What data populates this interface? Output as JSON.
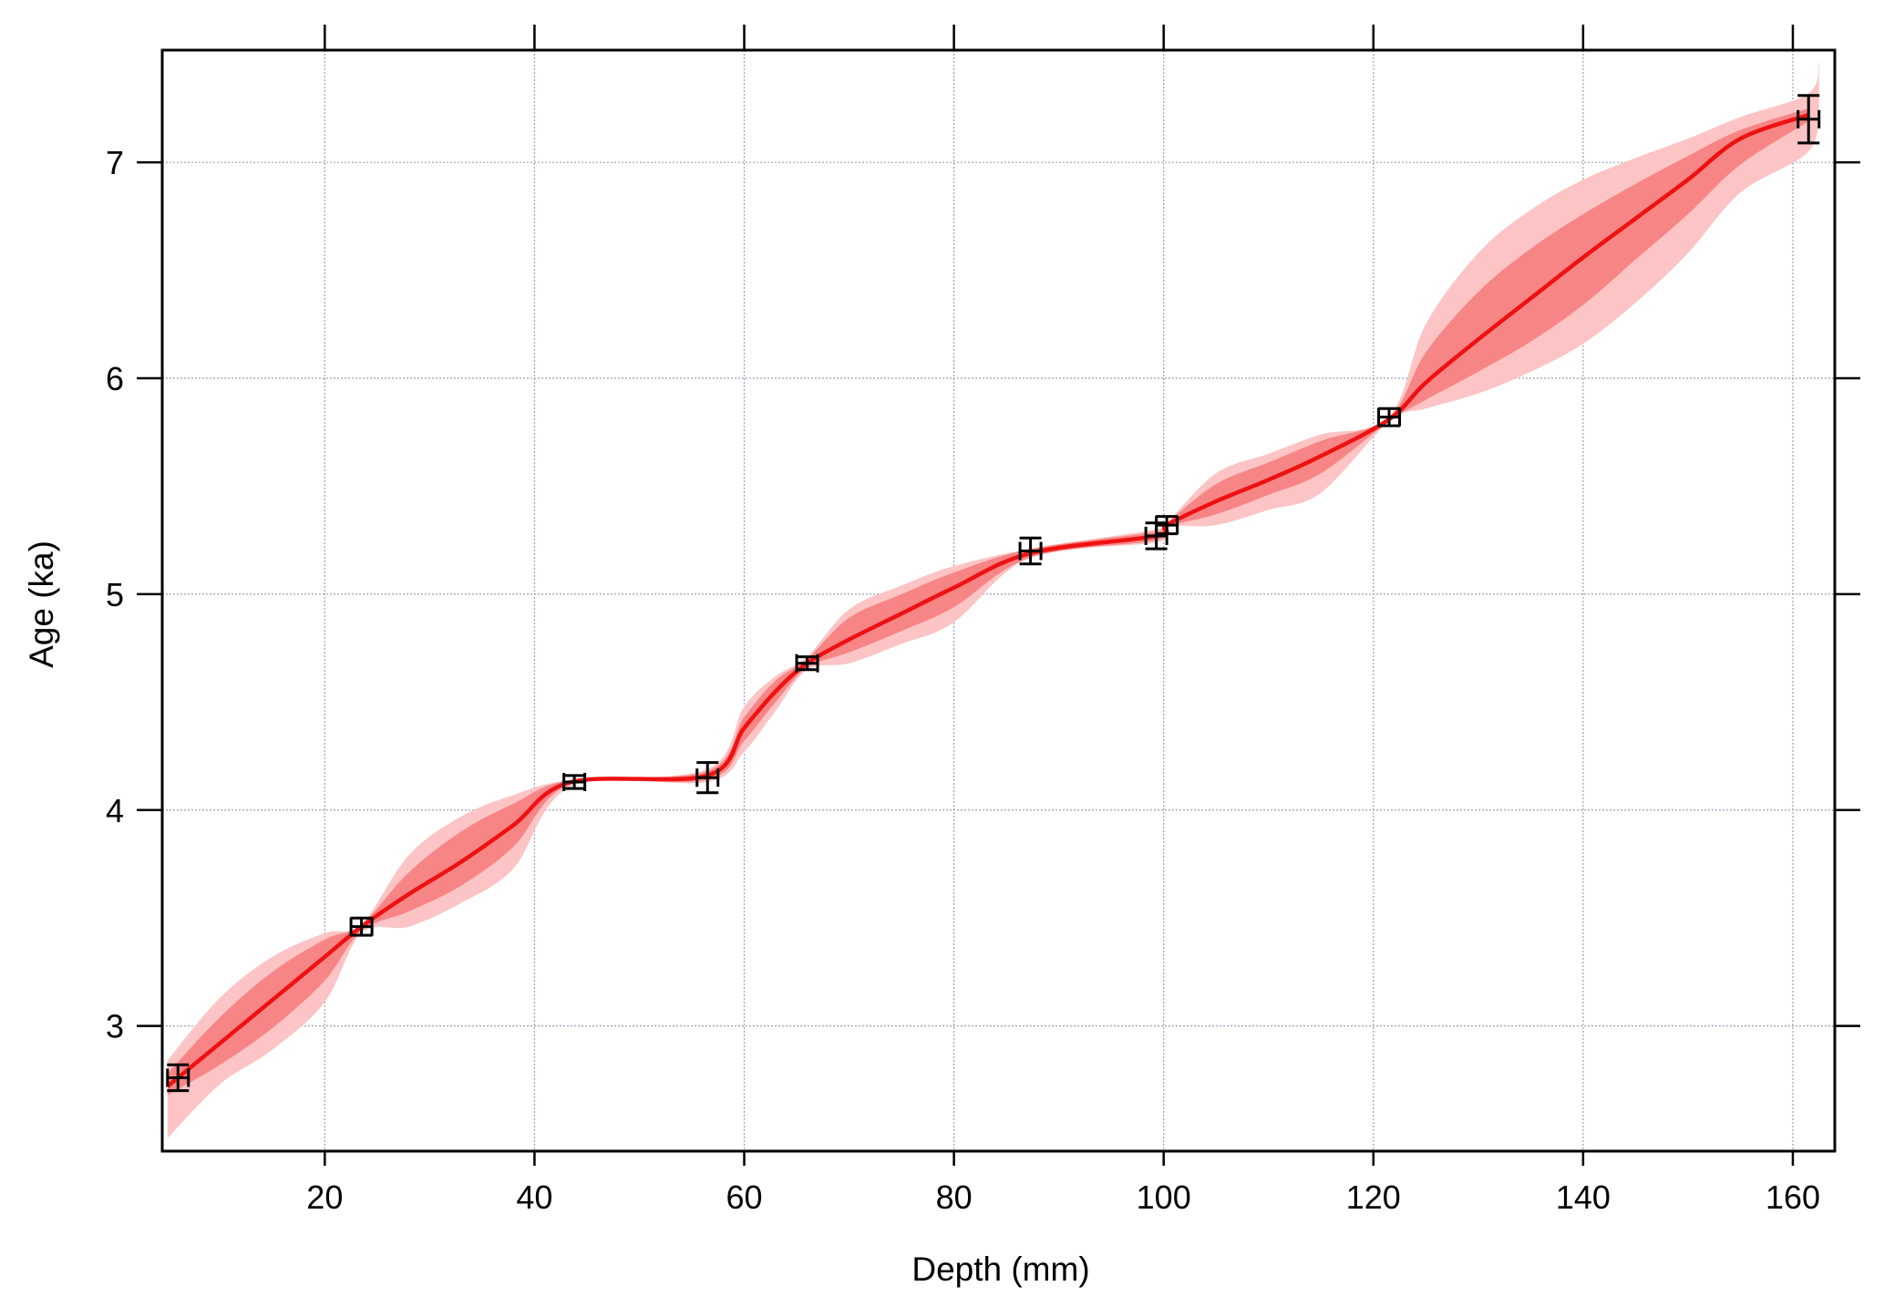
{
  "chart_data": {
    "type": "line",
    "xlabel": "Depth (mm)",
    "ylabel": "Age (ka)",
    "xlim": [
      4.5,
      164
    ],
    "ylim": [
      2.42,
      7.52
    ],
    "x_ticks": [
      20,
      40,
      60,
      80,
      100,
      120,
      140,
      160
    ],
    "y_ticks": [
      3,
      4,
      5,
      6,
      7
    ],
    "x_tick_labels": [
      "20",
      "40",
      "60",
      "80",
      "100",
      "120",
      "140",
      "160"
    ],
    "y_tick_labels": [
      "3",
      "4",
      "5",
      "6",
      "7"
    ],
    "grid": true,
    "colors": {
      "median": "#ee1111",
      "inner_band": "#f78585",
      "outer_band": "#fcc4c4",
      "points": "#000000"
    },
    "series": [
      {
        "role": "median",
        "x": [
          5.0,
          10,
          15,
          20,
          23.5,
          28,
          33,
          38,
          43.5,
          56.5,
          60,
          63,
          66.0,
          70,
          75,
          80,
          87.3,
          99.3,
          100.3,
          105,
          110,
          115,
          121.5,
          125,
          130,
          135,
          140,
          145,
          150,
          155,
          161.5
        ],
        "y": [
          2.72,
          2.92,
          3.12,
          3.32,
          3.46,
          3.61,
          3.76,
          3.93,
          4.13,
          4.16,
          4.38,
          4.55,
          4.68,
          4.79,
          4.91,
          5.03,
          5.19,
          5.27,
          5.32,
          5.43,
          5.53,
          5.64,
          5.81,
          5.98,
          6.18,
          6.37,
          6.56,
          6.74,
          6.92,
          7.11,
          7.22
        ]
      },
      {
        "role": "inner_band_upper",
        "x": [
          5.0,
          10,
          15,
          20,
          23.5,
          28,
          33,
          38,
          43.5,
          56.5,
          60,
          63,
          66.0,
          70,
          75,
          80,
          87.3,
          99.3,
          100.3,
          105,
          110,
          115,
          121.5,
          125,
          130,
          135,
          140,
          145,
          150,
          155,
          161.5
        ],
        "y": [
          2.78,
          3.04,
          3.25,
          3.4,
          3.47,
          3.71,
          3.9,
          4.03,
          4.14,
          4.18,
          4.43,
          4.6,
          4.7,
          4.89,
          5.0,
          5.1,
          5.21,
          5.29,
          5.33,
          5.51,
          5.61,
          5.71,
          5.82,
          6.12,
          6.4,
          6.6,
          6.76,
          6.9,
          7.03,
          7.15,
          7.25
        ]
      },
      {
        "role": "inner_band_lower",
        "x": [
          5.0,
          10,
          15,
          20,
          23.5,
          28,
          33,
          38,
          43.5,
          56.5,
          60,
          63,
          66.0,
          70,
          75,
          80,
          87.3,
          99.3,
          100.3,
          105,
          110,
          115,
          121.5,
          125,
          130,
          135,
          140,
          145,
          150,
          155,
          161.5
        ],
        "y": [
          2.68,
          2.82,
          2.99,
          3.21,
          3.44,
          3.53,
          3.65,
          3.83,
          4.12,
          4.14,
          4.32,
          4.5,
          4.66,
          4.73,
          4.83,
          4.94,
          5.17,
          5.25,
          5.31,
          5.37,
          5.46,
          5.56,
          5.8,
          5.9,
          6.03,
          6.17,
          6.34,
          6.55,
          6.76,
          6.99,
          7.19
        ]
      },
      {
        "role": "outer_band_upper",
        "x": [
          5.0,
          10,
          15,
          20,
          23.5,
          28,
          33,
          38,
          43.5,
          56.5,
          60,
          63,
          66.0,
          70,
          75,
          80,
          87.3,
          99.3,
          100.3,
          105,
          110,
          115,
          121.5,
          125,
          130,
          135,
          140,
          145,
          150,
          155,
          161.5,
          162.5
        ],
        "y": [
          2.84,
          3.13,
          3.32,
          3.43,
          3.47,
          3.79,
          3.97,
          4.07,
          4.14,
          4.19,
          4.48,
          4.62,
          4.71,
          4.93,
          5.04,
          5.13,
          5.21,
          5.3,
          5.33,
          5.56,
          5.65,
          5.74,
          5.82,
          6.25,
          6.58,
          6.78,
          6.92,
          7.02,
          7.11,
          7.21,
          7.32,
          7.47
        ]
      },
      {
        "role": "outer_band_lower",
        "x": [
          5.0,
          10,
          15,
          20,
          23.5,
          28,
          33,
          38,
          43.5,
          56.5,
          60,
          63,
          66.0,
          70,
          75,
          80,
          87.3,
          99.3,
          100.3,
          105,
          110,
          115,
          121.5,
          125,
          130,
          135,
          140,
          145,
          150,
          155,
          161.5,
          162.5
        ],
        "y": [
          2.48,
          2.73,
          2.89,
          3.11,
          3.43,
          3.46,
          3.57,
          3.73,
          4.11,
          4.13,
          4.27,
          4.46,
          4.65,
          4.68,
          4.77,
          4.87,
          5.17,
          5.24,
          5.31,
          5.32,
          5.39,
          5.47,
          5.8,
          5.86,
          5.93,
          6.03,
          6.16,
          6.35,
          6.58,
          6.86,
          7.05,
          7.25
        ]
      }
    ],
    "points": {
      "x": [
        6.0,
        23.5,
        43.8,
        56.5,
        66.0,
        87.3,
        99.3,
        100.3,
        121.5,
        161.5
      ],
      "y": [
        2.76,
        3.46,
        4.13,
        4.15,
        4.68,
        5.2,
        5.27,
        5.32,
        5.82,
        7.2
      ],
      "y_err": [
        0.06,
        0.04,
        0.03,
        0.07,
        0.03,
        0.06,
        0.06,
        0.04,
        0.04,
        0.11
      ],
      "x_err": [
        1.0,
        1.0,
        1.0,
        1.0,
        1.0,
        1.0,
        1.0,
        1.0,
        1.0,
        1.0
      ]
    }
  }
}
